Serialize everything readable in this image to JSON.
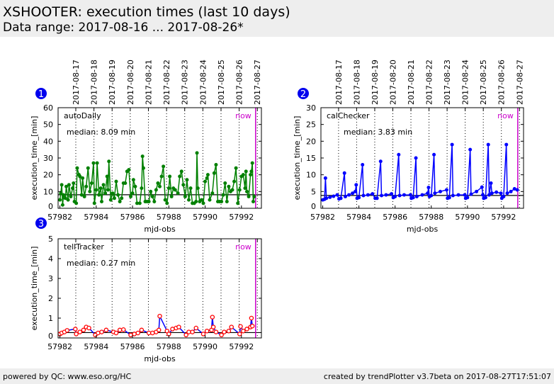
{
  "header": {
    "title": "XSHOOTER: execution times (last 10 days)",
    "subtitle": "Data range: 2017-08-16 ... 2017-08-26*"
  },
  "footer": {
    "left": "powered by QC: www.eso.org/HC",
    "right": "created by trendPlotter v3.7beta on 2017-08-27T17:51:07"
  },
  "chart_data": [
    {
      "type": "line",
      "badge": "1",
      "series_name": "autoDaily",
      "median_label": "median: 8.09 min",
      "median": 8.09,
      "xlabel": "mjd-obs",
      "ylabel": "execution_time_[min]",
      "xlim": [
        57981.9,
        57993.1
      ],
      "ylim": [
        0,
        60
      ],
      "yticks": [
        0,
        10,
        20,
        30,
        40,
        50,
        60
      ],
      "xticks": [
        57982,
        57984,
        57986,
        57988,
        57990,
        57992
      ],
      "now": 57992.78,
      "now_label": "now",
      "line_color": "#008000",
      "marker": "filled-circle",
      "marker_color": "#008000",
      "date_ticks": [
        [
          "2017-08-17",
          57982.875
        ],
        [
          "2017-08-18",
          57983.875
        ],
        [
          "2017-08-19",
          57984.875
        ],
        [
          "2017-08-20",
          57985.875
        ],
        [
          "2017-08-21",
          57986.875
        ],
        [
          "2017-08-22",
          57987.875
        ],
        [
          "2017-08-23",
          57988.875
        ],
        [
          "2017-08-24",
          57989.875
        ],
        [
          "2017-08-25",
          57990.875
        ],
        [
          "2017-08-26",
          57991.875
        ],
        [
          "2017-08-27",
          57992.875
        ]
      ],
      "points": [
        [
          57982.0,
          5
        ],
        [
          57982.05,
          9
        ],
        [
          57982.1,
          14
        ],
        [
          57982.15,
          2
        ],
        [
          57982.2,
          8
        ],
        [
          57982.3,
          6
        ],
        [
          57982.35,
          13
        ],
        [
          57982.45,
          5
        ],
        [
          57982.5,
          14
        ],
        [
          57982.6,
          7
        ],
        [
          57982.7,
          12
        ],
        [
          57982.75,
          15
        ],
        [
          57982.8,
          4
        ],
        [
          57982.9,
          3
        ],
        [
          57982.95,
          24
        ],
        [
          57983.05,
          20
        ],
        [
          57983.1,
          19
        ],
        [
          57983.2,
          8
        ],
        [
          57983.25,
          18
        ],
        [
          57983.35,
          7
        ],
        [
          57983.45,
          13
        ],
        [
          57983.55,
          24
        ],
        [
          57983.65,
          10
        ],
        [
          57983.75,
          15
        ],
        [
          57983.85,
          27
        ],
        [
          57983.9,
          3
        ],
        [
          57984.0,
          11
        ],
        [
          57984.05,
          27
        ],
        [
          57984.15,
          8
        ],
        [
          57984.25,
          12
        ],
        [
          57984.3,
          4
        ],
        [
          57984.4,
          14
        ],
        [
          57984.5,
          9
        ],
        [
          57984.6,
          19
        ],
        [
          57984.65,
          11
        ],
        [
          57984.7,
          28
        ],
        [
          57984.8,
          5
        ],
        [
          57984.9,
          9
        ],
        [
          57985.0,
          6
        ],
        [
          57985.1,
          16
        ],
        [
          57985.2,
          8
        ],
        [
          57985.3,
          4
        ],
        [
          57985.4,
          6
        ],
        [
          57985.5,
          15
        ],
        [
          57985.6,
          15
        ],
        [
          57985.7,
          22
        ],
        [
          57985.8,
          23
        ],
        [
          57985.9,
          7
        ],
        [
          57986.0,
          9
        ],
        [
          57986.05,
          17
        ],
        [
          57986.15,
          13
        ],
        [
          57986.25,
          3
        ],
        [
          57986.4,
          3
        ],
        [
          57986.5,
          12
        ],
        [
          57986.55,
          31
        ],
        [
          57986.6,
          24
        ],
        [
          57986.7,
          4
        ],
        [
          57986.8,
          4
        ],
        [
          57986.9,
          4
        ],
        [
          57987.0,
          10
        ],
        [
          57987.1,
          7
        ],
        [
          57987.2,
          4
        ],
        [
          57987.3,
          11
        ],
        [
          57987.4,
          15
        ],
        [
          57987.5,
          13
        ],
        [
          57987.6,
          19
        ],
        [
          57987.7,
          25
        ],
        [
          57987.8,
          5
        ],
        [
          57987.9,
          3
        ],
        [
          57988.0,
          12
        ],
        [
          57988.05,
          19
        ],
        [
          57988.15,
          7
        ],
        [
          57988.25,
          12
        ],
        [
          57988.35,
          11
        ],
        [
          57988.5,
          9
        ],
        [
          57988.6,
          19
        ],
        [
          57988.7,
          22
        ],
        [
          57988.8,
          14
        ],
        [
          57988.9,
          7
        ],
        [
          57989.0,
          17
        ],
        [
          57989.1,
          5
        ],
        [
          57989.2,
          12
        ],
        [
          57989.3,
          3
        ],
        [
          57989.4,
          3
        ],
        [
          57989.5,
          4
        ],
        [
          57989.55,
          33
        ],
        [
          57989.6,
          12
        ],
        [
          57989.7,
          4
        ],
        [
          57989.8,
          5
        ],
        [
          57989.9,
          3
        ],
        [
          57990.0,
          16
        ],
        [
          57990.1,
          18
        ],
        [
          57990.15,
          20
        ],
        [
          57990.25,
          5
        ],
        [
          57990.4,
          9
        ],
        [
          57990.5,
          21
        ],
        [
          57990.6,
          26
        ],
        [
          57990.7,
          4
        ],
        [
          57990.8,
          4
        ],
        [
          57990.9,
          4
        ],
        [
          57991.0,
          8
        ],
        [
          57991.1,
          15
        ],
        [
          57991.2,
          4
        ],
        [
          57991.3,
          13
        ],
        [
          57991.4,
          10
        ],
        [
          57991.5,
          11
        ],
        [
          57991.6,
          16
        ],
        [
          57991.7,
          24
        ],
        [
          57991.8,
          3
        ],
        [
          57991.9,
          11
        ],
        [
          57992.0,
          19
        ],
        [
          57992.1,
          20
        ],
        [
          57992.2,
          12
        ],
        [
          57992.25,
          22
        ],
        [
          57992.3,
          10
        ],
        [
          57992.4,
          7
        ],
        [
          57992.5,
          20
        ],
        [
          57992.55,
          22
        ],
        [
          57992.6,
          27
        ],
        [
          57992.65,
          4
        ],
        [
          57992.7,
          7
        ]
      ]
    },
    {
      "type": "line",
      "badge": "2",
      "series_name": "calChecker",
      "median_label": "median: 3.83 min",
      "median": 3.83,
      "xlabel": "mjd-obs",
      "ylabel": "execution_time_[min]",
      "xlim": [
        57981.9,
        57993.1
      ],
      "ylim": [
        0,
        30
      ],
      "yticks": [
        0,
        5,
        10,
        15,
        20,
        25,
        30
      ],
      "xticks": [
        57982,
        57984,
        57986,
        57988,
        57990,
        57992
      ],
      "now": 57992.78,
      "now_label": "now",
      "line_color": "#0000ff",
      "marker": "filled-circle",
      "marker_color": "#0000ff",
      "date_ticks": [
        [
          "2017-08-17",
          57982.875
        ],
        [
          "2017-08-18",
          57983.875
        ],
        [
          "2017-08-19",
          57984.875
        ],
        [
          "2017-08-20",
          57985.875
        ],
        [
          "2017-08-21",
          57986.875
        ],
        [
          "2017-08-22",
          57987.875
        ],
        [
          "2017-08-23",
          57988.875
        ],
        [
          "2017-08-24",
          57989.875
        ],
        [
          "2017-08-25",
          57990.875
        ],
        [
          "2017-08-26",
          57991.875
        ],
        [
          "2017-08-27",
          57992.875
        ]
      ],
      "points": [
        [
          57982.0,
          2.5
        ],
        [
          57982.1,
          2.7
        ],
        [
          57982.15,
          9
        ],
        [
          57982.2,
          3
        ],
        [
          57982.4,
          3.3
        ],
        [
          57982.6,
          3.6
        ],
        [
          57982.8,
          4
        ],
        [
          57982.9,
          2.8
        ],
        [
          57983.0,
          3
        ],
        [
          57983.2,
          10.5
        ],
        [
          57983.25,
          3.5
        ],
        [
          57983.45,
          4
        ],
        [
          57983.65,
          4.5
        ],
        [
          57983.8,
          5
        ],
        [
          57983.85,
          7
        ],
        [
          57983.9,
          3
        ],
        [
          57984.0,
          3.2
        ],
        [
          57984.2,
          13
        ],
        [
          57984.25,
          3.8
        ],
        [
          57984.5,
          4
        ],
        [
          57984.75,
          4.3
        ],
        [
          57984.9,
          3
        ],
        [
          57985.0,
          3
        ],
        [
          57985.2,
          14
        ],
        [
          57985.25,
          3.8
        ],
        [
          57985.5,
          4
        ],
        [
          57985.8,
          4.3
        ],
        [
          57985.9,
          3.2
        ],
        [
          57986.0,
          3.5
        ],
        [
          57986.2,
          16
        ],
        [
          57986.25,
          3.8
        ],
        [
          57986.5,
          4
        ],
        [
          57986.85,
          4
        ],
        [
          57986.9,
          3
        ],
        [
          57987.0,
          3.2
        ],
        [
          57987.15,
          15
        ],
        [
          57987.2,
          3.5
        ],
        [
          57987.5,
          4
        ],
        [
          57987.8,
          4.5
        ],
        [
          57987.85,
          6.2
        ],
        [
          57987.9,
          3.5
        ],
        [
          57988.0,
          3.8
        ],
        [
          57988.15,
          16
        ],
        [
          57988.2,
          4.5
        ],
        [
          57988.5,
          5
        ],
        [
          57988.85,
          5.5
        ],
        [
          57988.9,
          3
        ],
        [
          57989.0,
          3.2
        ],
        [
          57989.15,
          19
        ],
        [
          57989.2,
          3.8
        ],
        [
          57989.5,
          4
        ],
        [
          57989.85,
          4
        ],
        [
          57989.9,
          3
        ],
        [
          57990.0,
          3.2
        ],
        [
          57990.15,
          17.5
        ],
        [
          57990.2,
          4.2
        ],
        [
          57990.5,
          5
        ],
        [
          57990.8,
          6.3
        ],
        [
          57990.85,
          4
        ],
        [
          57990.9,
          3
        ],
        [
          57991.0,
          3.2
        ],
        [
          57991.15,
          19
        ],
        [
          57991.2,
          4
        ],
        [
          57991.3,
          7.5
        ],
        [
          57991.35,
          4.5
        ],
        [
          57991.6,
          4.8
        ],
        [
          57991.85,
          4.5
        ],
        [
          57991.9,
          3
        ],
        [
          57992.0,
          3.5
        ],
        [
          57992.15,
          19
        ],
        [
          57992.2,
          4.5
        ],
        [
          57992.4,
          5
        ],
        [
          57992.6,
          5.8
        ],
        [
          57992.75,
          5.5
        ]
      ]
    },
    {
      "type": "line",
      "badge": "3",
      "series_name": "tellTracker",
      "median_label": "median: 0.27 min",
      "median": 0.27,
      "xlabel": "mjd-obs",
      "ylabel": "execution_time_[min]",
      "xlim": [
        57981.9,
        57993.1
      ],
      "ylim": [
        0,
        5
      ],
      "yticks": [
        0,
        1,
        2,
        3,
        4,
        5
      ],
      "xticks": [
        57982,
        57984,
        57986,
        57988,
        57990,
        57992
      ],
      "now": 57992.78,
      "now_label": "now",
      "line_color": "#0000ff",
      "marker": "open-circle",
      "marker_color": "#ff0000",
      "date_ticks": [
        [
          "",
          57982.875
        ],
        [
          "",
          57983.875
        ],
        [
          "",
          57984.875
        ],
        [
          "",
          57985.875
        ],
        [
          "",
          57986.875
        ],
        [
          "",
          57987.875
        ],
        [
          "",
          57988.875
        ],
        [
          "",
          57989.875
        ],
        [
          "",
          57990.875
        ],
        [
          "",
          57991.875
        ],
        [
          "",
          57992.875
        ]
      ],
      "points": [
        [
          57982.0,
          0.2
        ],
        [
          57982.1,
          0.25
        ],
        [
          57982.25,
          0.3
        ],
        [
          57982.4,
          0.38
        ],
        [
          57982.85,
          0.45
        ],
        [
          57982.9,
          0.2
        ],
        [
          57983.1,
          0.3
        ],
        [
          57983.3,
          0.4
        ],
        [
          57983.45,
          0.55
        ],
        [
          57983.6,
          0.5
        ],
        [
          57983.95,
          0.15
        ],
        [
          57984.1,
          0.25
        ],
        [
          57984.3,
          0.3
        ],
        [
          57984.55,
          0.4
        ],
        [
          57984.95,
          0.3
        ],
        [
          57985.1,
          0.25
        ],
        [
          57985.3,
          0.4
        ],
        [
          57985.5,
          0.42
        ],
        [
          57985.9,
          0.15
        ],
        [
          57986.1,
          0.2
        ],
        [
          57986.3,
          0.25
        ],
        [
          57986.5,
          0.4
        ],
        [
          57986.9,
          0.25
        ],
        [
          57987.1,
          0.25
        ],
        [
          57987.3,
          0.3
        ],
        [
          57987.45,
          0.4
        ],
        [
          57987.5,
          1.1
        ],
        [
          57987.9,
          0.35
        ],
        [
          57988.0,
          0.2
        ],
        [
          57988.2,
          0.45
        ],
        [
          57988.4,
          0.5
        ],
        [
          57988.55,
          0.55
        ],
        [
          57988.95,
          0.15
        ],
        [
          57989.1,
          0.3
        ],
        [
          57989.3,
          0.3
        ],
        [
          57989.5,
          0.5
        ],
        [
          57989.9,
          0.2
        ],
        [
          57990.1,
          0.35
        ],
        [
          57990.35,
          0.4
        ],
        [
          57990.4,
          1.05
        ],
        [
          57990.45,
          0.55
        ],
        [
          57990.6,
          0.3
        ],
        [
          57990.9,
          0.15
        ],
        [
          57991.05,
          0.3
        ],
        [
          57991.3,
          0.35
        ],
        [
          57991.45,
          0.55
        ],
        [
          57991.9,
          0.2
        ],
        [
          57991.95,
          0.58
        ],
        [
          57992.1,
          0.35
        ],
        [
          57992.3,
          0.45
        ],
        [
          57992.5,
          0.55
        ],
        [
          57992.55,
          1.0
        ],
        [
          57992.6,
          0.6
        ]
      ]
    }
  ]
}
